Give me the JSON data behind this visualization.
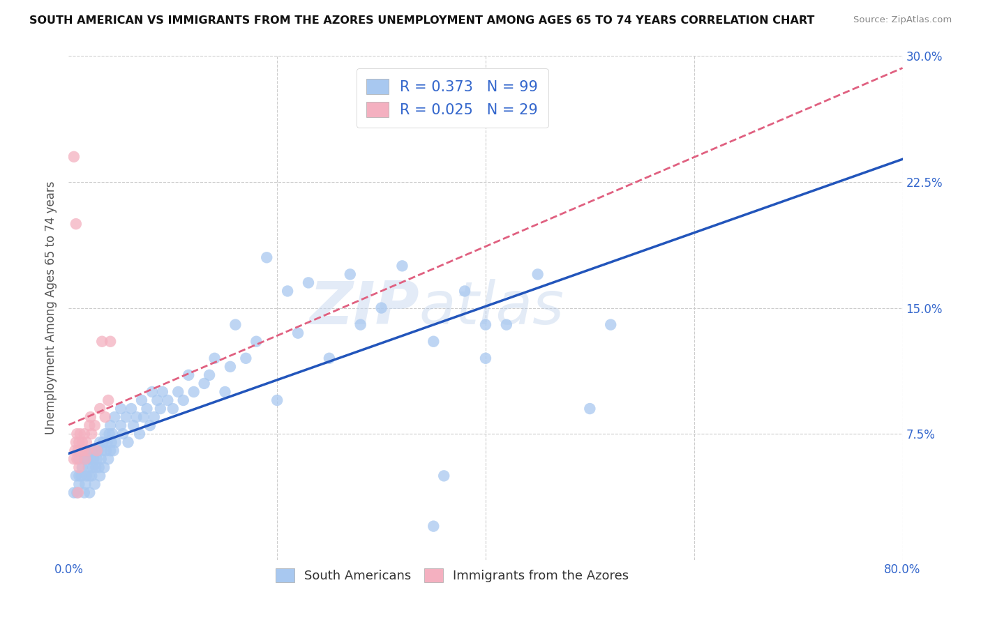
{
  "title": "SOUTH AMERICAN VS IMMIGRANTS FROM THE AZORES UNEMPLOYMENT AMONG AGES 65 TO 74 YEARS CORRELATION CHART",
  "source": "Source: ZipAtlas.com",
  "ylabel": "Unemployment Among Ages 65 to 74 years",
  "xlim": [
    0.0,
    0.8
  ],
  "ylim": [
    0.0,
    0.3
  ],
  "xticks": [
    0.0,
    0.2,
    0.4,
    0.6,
    0.8
  ],
  "xticklabels": [
    "0.0%",
    "",
    "",
    "",
    "80.0%"
  ],
  "yticks": [
    0.0,
    0.075,
    0.15,
    0.225,
    0.3
  ],
  "yticklabels": [
    "",
    "7.5%",
    "15.0%",
    "22.5%",
    "30.0%"
  ],
  "grid_color": "#cccccc",
  "bg_color": "#ffffff",
  "blue_color": "#a8c8f0",
  "pink_color": "#f4b0c0",
  "blue_line_color": "#2255bb",
  "pink_line_color": "#e06080",
  "legend_blue_label": "R = 0.373   N = 99",
  "legend_pink_label": "R = 0.025   N = 29",
  "legend_bottom_blue": "South Americans",
  "legend_bottom_pink": "Immigrants from the Azores",
  "blue_scatter_x": [
    0.005,
    0.007,
    0.008,
    0.01,
    0.01,
    0.01,
    0.012,
    0.013,
    0.015,
    0.015,
    0.016,
    0.017,
    0.018,
    0.018,
    0.019,
    0.02,
    0.02,
    0.021,
    0.022,
    0.022,
    0.023,
    0.024,
    0.025,
    0.025,
    0.026,
    0.027,
    0.028,
    0.029,
    0.03,
    0.03,
    0.031,
    0.032,
    0.033,
    0.034,
    0.035,
    0.036,
    0.037,
    0.038,
    0.039,
    0.04,
    0.04,
    0.041,
    0.042,
    0.043,
    0.044,
    0.045,
    0.05,
    0.05,
    0.052,
    0.055,
    0.057,
    0.06,
    0.062,
    0.065,
    0.068,
    0.07,
    0.072,
    0.075,
    0.078,
    0.08,
    0.082,
    0.085,
    0.088,
    0.09,
    0.095,
    0.1,
    0.105,
    0.11,
    0.115,
    0.12,
    0.13,
    0.135,
    0.14,
    0.15,
    0.155,
    0.16,
    0.17,
    0.18,
    0.19,
    0.2,
    0.21,
    0.22,
    0.23,
    0.25,
    0.27,
    0.28,
    0.3,
    0.32,
    0.35,
    0.38,
    0.4,
    0.42,
    0.45,
    0.5,
    0.52,
    0.3,
    0.35,
    0.4,
    0.36
  ],
  "blue_scatter_y": [
    0.04,
    0.05,
    0.04,
    0.05,
    0.06,
    0.045,
    0.05,
    0.055,
    0.04,
    0.06,
    0.045,
    0.05,
    0.06,
    0.065,
    0.055,
    0.04,
    0.05,
    0.06,
    0.05,
    0.065,
    0.055,
    0.06,
    0.045,
    0.065,
    0.055,
    0.06,
    0.065,
    0.055,
    0.05,
    0.07,
    0.06,
    0.065,
    0.07,
    0.055,
    0.075,
    0.065,
    0.07,
    0.06,
    0.075,
    0.065,
    0.08,
    0.07,
    0.075,
    0.065,
    0.085,
    0.07,
    0.08,
    0.09,
    0.075,
    0.085,
    0.07,
    0.09,
    0.08,
    0.085,
    0.075,
    0.095,
    0.085,
    0.09,
    0.08,
    0.1,
    0.085,
    0.095,
    0.09,
    0.1,
    0.095,
    0.09,
    0.1,
    0.095,
    0.11,
    0.1,
    0.105,
    0.11,
    0.12,
    0.1,
    0.115,
    0.14,
    0.12,
    0.13,
    0.18,
    0.095,
    0.16,
    0.135,
    0.165,
    0.12,
    0.17,
    0.14,
    0.15,
    0.175,
    0.13,
    0.16,
    0.12,
    0.14,
    0.17,
    0.09,
    0.14,
    0.27,
    0.02,
    0.14,
    0.05
  ],
  "pink_scatter_x": [
    0.005,
    0.006,
    0.007,
    0.008,
    0.008,
    0.009,
    0.01,
    0.01,
    0.011,
    0.012,
    0.013,
    0.014,
    0.015,
    0.016,
    0.017,
    0.018,
    0.02,
    0.021,
    0.022,
    0.025,
    0.027,
    0.03,
    0.032,
    0.035,
    0.038,
    0.04,
    0.005,
    0.007,
    0.009
  ],
  "pink_scatter_y": [
    0.06,
    0.065,
    0.07,
    0.06,
    0.075,
    0.065,
    0.07,
    0.055,
    0.075,
    0.065,
    0.07,
    0.065,
    0.075,
    0.06,
    0.07,
    0.065,
    0.08,
    0.085,
    0.075,
    0.08,
    0.065,
    0.09,
    0.13,
    0.085,
    0.095,
    0.13,
    0.24,
    0.2,
    0.04
  ]
}
